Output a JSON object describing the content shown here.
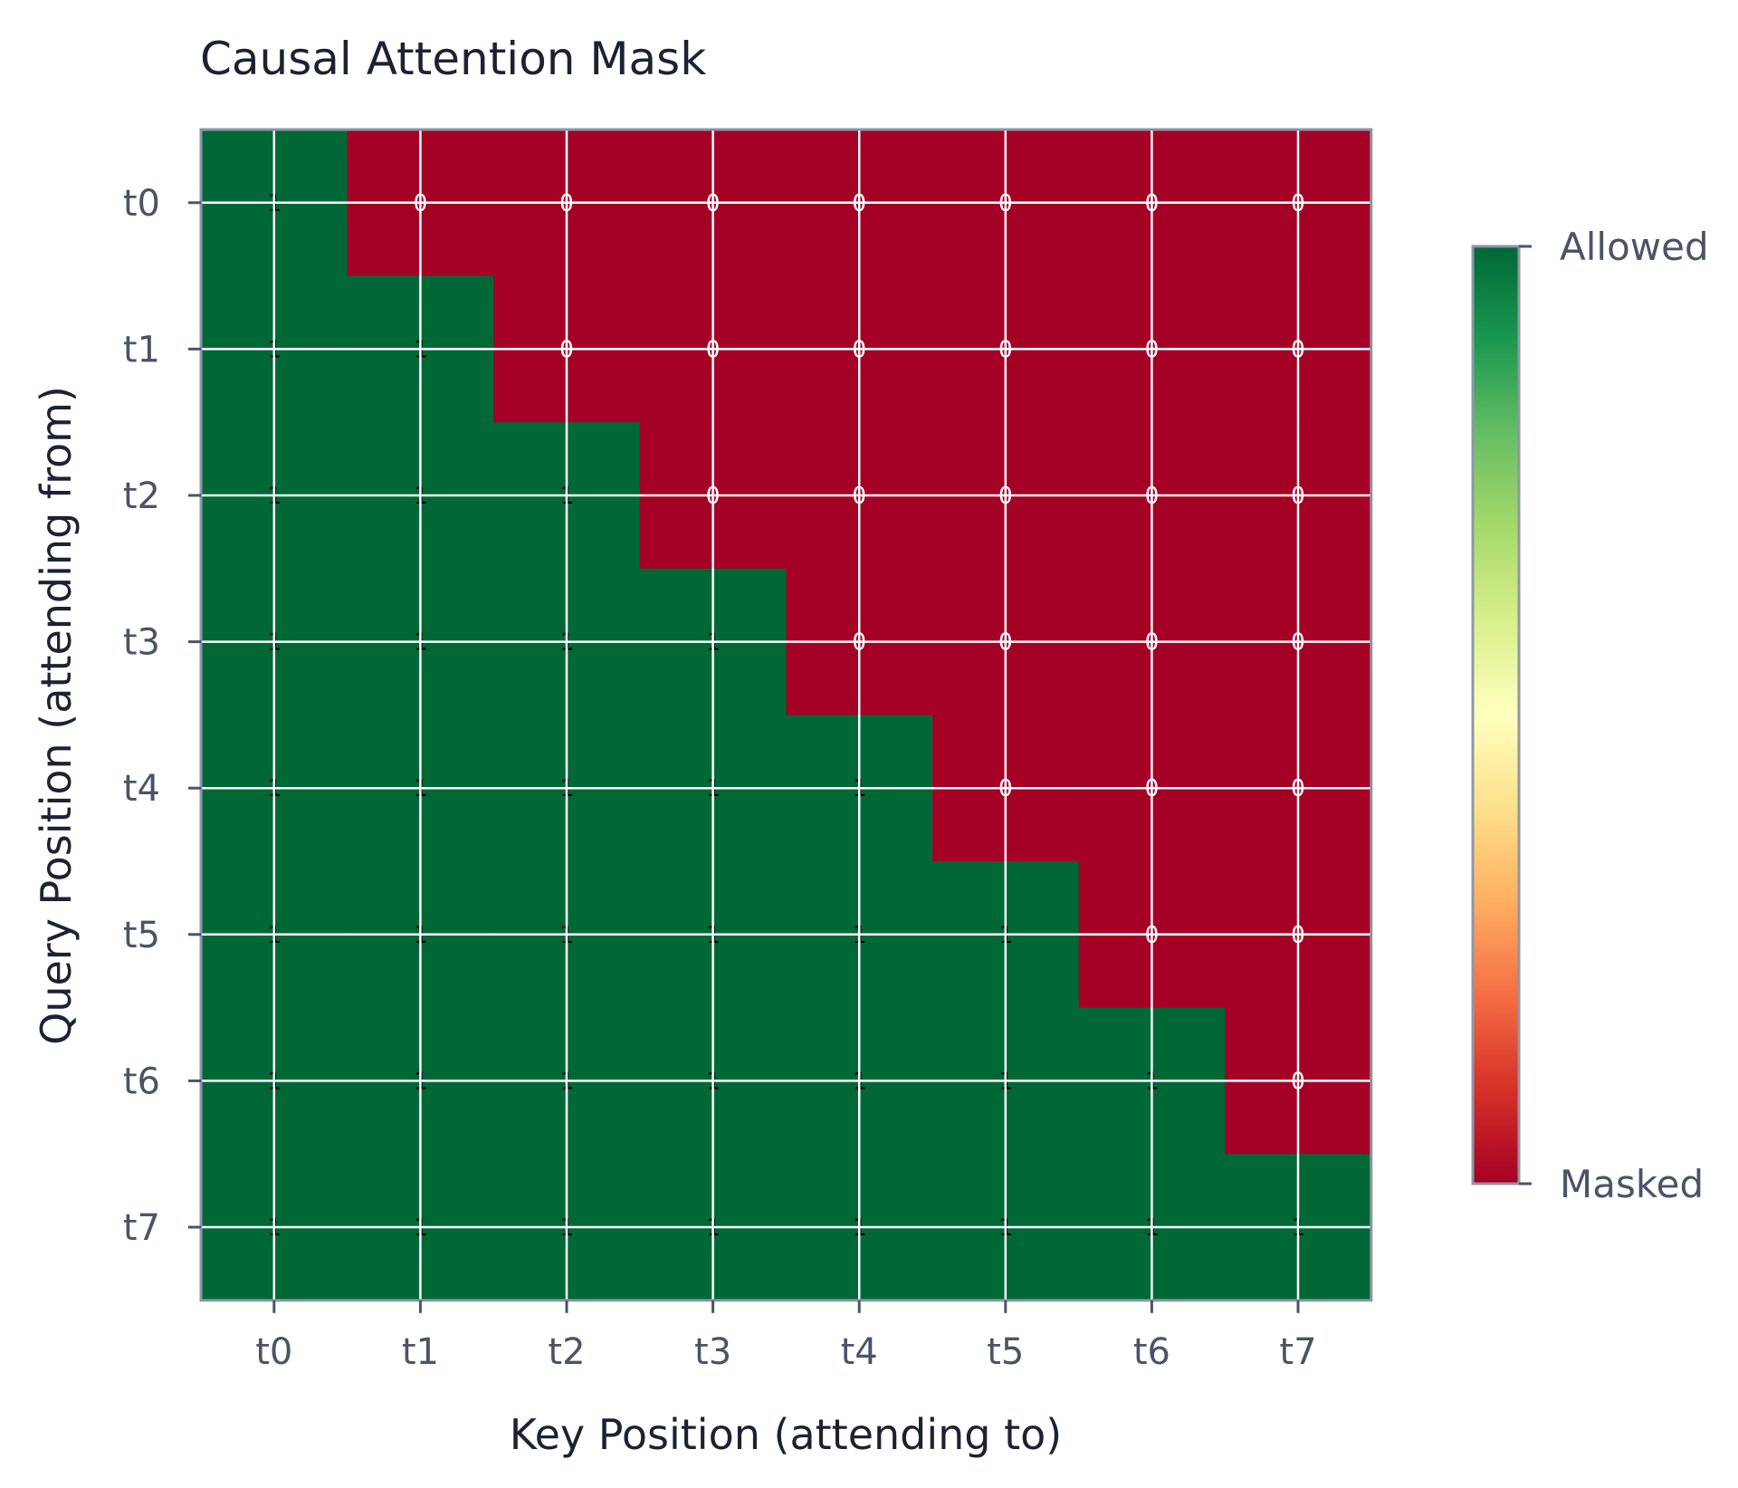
{
  "chart_data": {
    "type": "heatmap",
    "title": "Causal Attention Mask",
    "xlabel": "Key Position (attending to)",
    "ylabel": "Query Position (attending from)",
    "x_categories": [
      "t0",
      "t1",
      "t2",
      "t3",
      "t4",
      "t5",
      "t6",
      "t7"
    ],
    "y_categories": [
      "t0",
      "t1",
      "t2",
      "t3",
      "t4",
      "t5",
      "t6",
      "t7"
    ],
    "values": [
      [
        1,
        0,
        0,
        0,
        0,
        0,
        0,
        0
      ],
      [
        1,
        1,
        0,
        0,
        0,
        0,
        0,
        0
      ],
      [
        1,
        1,
        1,
        0,
        0,
        0,
        0,
        0
      ],
      [
        1,
        1,
        1,
        1,
        0,
        0,
        0,
        0
      ],
      [
        1,
        1,
        1,
        1,
        1,
        0,
        0,
        0
      ],
      [
        1,
        1,
        1,
        1,
        1,
        1,
        0,
        0
      ],
      [
        1,
        1,
        1,
        1,
        1,
        1,
        1,
        0
      ],
      [
        1,
        1,
        1,
        1,
        1,
        1,
        1,
        1
      ]
    ],
    "value_range": [
      0,
      1
    ],
    "grid": true,
    "colormap": [
      "#a50026",
      "#d73027",
      "#f46d43",
      "#fdae61",
      "#fee08b",
      "#ffffbf",
      "#d9ef8b",
      "#a6d96a",
      "#66bd63",
      "#1a9850",
      "#006837"
    ],
    "colorbar": {
      "top_label": "Allowed",
      "bottom_label": "Masked"
    },
    "colors": {
      "allowed": "#006837",
      "masked": "#a50026",
      "grid": "#ffffff",
      "frame": "#8c97a8",
      "text_on_allowed": "#000000",
      "text_on_masked": "#ffffff"
    }
  }
}
